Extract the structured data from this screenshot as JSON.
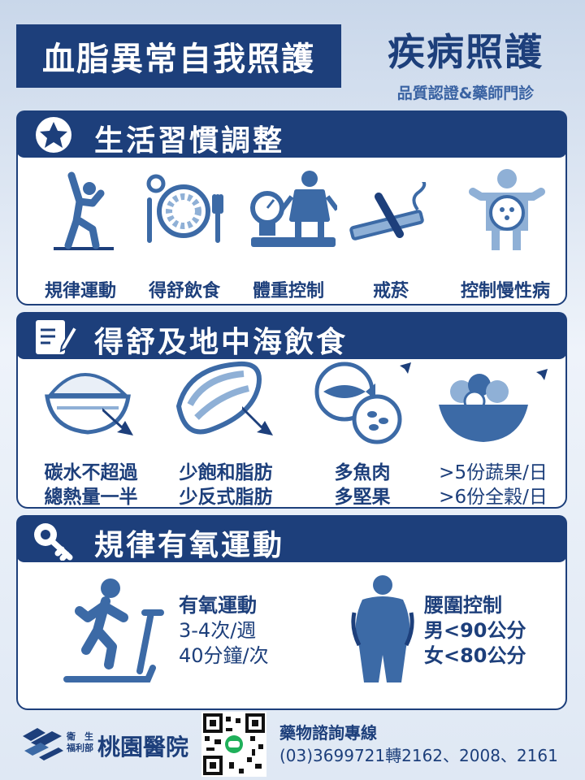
{
  "header": {
    "title": "血脂異常自我照護",
    "brand_title": "疾病照護",
    "brand_subtitle": "品質認證&藥師門診"
  },
  "sections": [
    {
      "title": "生活習慣調整",
      "icon": "star-icon",
      "items": [
        {
          "label": "規律運動",
          "icon": "exercise-icon"
        },
        {
          "label": "得舒飲食",
          "icon": "dining-plate-icon"
        },
        {
          "label": "體重控制",
          "icon": "weight-scale-icon"
        },
        {
          "label": "戒菸",
          "icon": "no-smoking-icon"
        },
        {
          "label": "控制慢性病",
          "icon": "chronic-disease-icon"
        }
      ]
    },
    {
      "title": "得舒及地中海飲食",
      "icon": "notepad-icon",
      "items": [
        {
          "line1": "碳水不超過",
          "line2": "總熱量一半",
          "icon": "rice-bowl-icon",
          "trend": "down"
        },
        {
          "line1": "少飽和脂肪",
          "line2": "少反式脂肪",
          "icon": "meat-icon",
          "trend": "down"
        },
        {
          "line1": "多魚肉",
          "line2": "多堅果",
          "icon": "fish-nuts-icon",
          "trend": "up"
        },
        {
          "line1": ">5份蔬果/日",
          "line2": ">6份全穀/日",
          "icon": "salad-icon",
          "trend": "up"
        }
      ]
    },
    {
      "title": "規律有氧運動",
      "icon": "key-icon",
      "aerobic": {
        "line1": "有氧運動",
        "line2": "3-4次/週",
        "line3": "40分鐘/次",
        "icon": "treadmill-icon"
      },
      "waist": {
        "line1": "腰圍控制",
        "line2": "男<90公分",
        "line3": "女<80公分",
        "icon": "waist-icon"
      }
    }
  ],
  "footer": {
    "hospital_ministry_line1": "衛　生",
    "hospital_ministry_line2": "福利部",
    "hospital_name": "桃園醫院",
    "hotline_label": "藥物諮詢專線",
    "hotline_numbers": "(03)3699721轉2162、2008、2161"
  },
  "colors": {
    "primary": "#1d3f7b",
    "icon_blue": "#3c6aa6",
    "light_blue": "#8fb0d6",
    "green": "#1fb05a"
  }
}
